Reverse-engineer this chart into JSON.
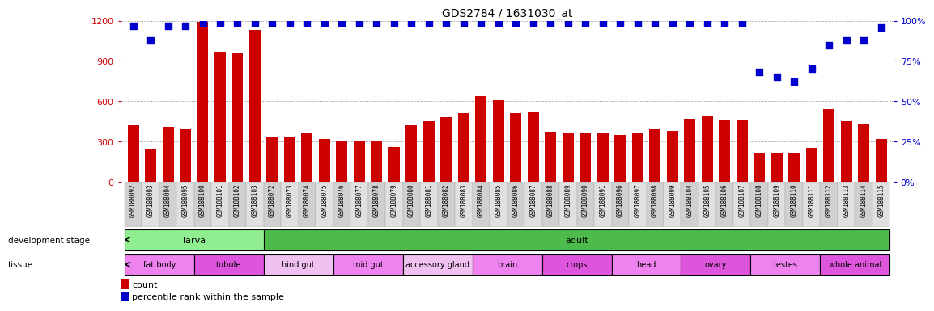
{
  "title": "GDS2784 / 1631030_at",
  "samples": [
    "GSM188092",
    "GSM188093",
    "GSM188094",
    "GSM188095",
    "GSM188100",
    "GSM188101",
    "GSM188102",
    "GSM188103",
    "GSM188072",
    "GSM188073",
    "GSM188074",
    "GSM188075",
    "GSM188076",
    "GSM188077",
    "GSM188078",
    "GSM188079",
    "GSM188080",
    "GSM188081",
    "GSM188082",
    "GSM188083",
    "GSM188084",
    "GSM188085",
    "GSM188086",
    "GSM188087",
    "GSM188088",
    "GSM188089",
    "GSM188090",
    "GSM188091",
    "GSM188096",
    "GSM188097",
    "GSM188098",
    "GSM188099",
    "GSM188104",
    "GSM188105",
    "GSM188106",
    "GSM188107",
    "GSM188108",
    "GSM188109",
    "GSM188110",
    "GSM188111",
    "GSM188112",
    "GSM188113",
    "GSM188114",
    "GSM188115"
  ],
  "counts": [
    420,
    250,
    410,
    390,
    1190,
    970,
    960,
    1130,
    340,
    330,
    360,
    320,
    310,
    310,
    310,
    260,
    420,
    450,
    480,
    510,
    640,
    610,
    510,
    520,
    370,
    360,
    360,
    360,
    350,
    360,
    390,
    380,
    470,
    490,
    460,
    460,
    220,
    215,
    215,
    255,
    540,
    450,
    430,
    320
  ],
  "percentiles": [
    97,
    88,
    97,
    97,
    99,
    99,
    99,
    99,
    99,
    99,
    99,
    99,
    99,
    99,
    99,
    99,
    99,
    99,
    99,
    99,
    99,
    99,
    99,
    99,
    99,
    99,
    99,
    99,
    99,
    99,
    99,
    99,
    99,
    99,
    99,
    99,
    68,
    65,
    62,
    70,
    85,
    88,
    88,
    96
  ],
  "ylim_left": [
    0,
    1200
  ],
  "ylim_right": [
    0,
    100
  ],
  "yticks_left": [
    0,
    300,
    600,
    900,
    1200
  ],
  "yticks_right": [
    0,
    25,
    50,
    75,
    100
  ],
  "bar_color": "#cc0000",
  "dot_color": "#0000cc",
  "background_color": "#ffffff",
  "development_stages": [
    {
      "label": "larva",
      "start": 0,
      "end": 8,
      "color": "#90ee90"
    },
    {
      "label": "adult",
      "start": 8,
      "end": 44,
      "color": "#4cbb4c"
    }
  ],
  "tissues": [
    {
      "label": "fat body",
      "start": 0,
      "end": 4,
      "color": "#ee82ee"
    },
    {
      "label": "tubule",
      "start": 4,
      "end": 8,
      "color": "#dd55dd"
    },
    {
      "label": "hind gut",
      "start": 8,
      "end": 12,
      "color": "#f0c0f0"
    },
    {
      "label": "mid gut",
      "start": 12,
      "end": 16,
      "color": "#ee82ee"
    },
    {
      "label": "accessory gland",
      "start": 16,
      "end": 20,
      "color": "#f0c0f0"
    },
    {
      "label": "brain",
      "start": 20,
      "end": 24,
      "color": "#ee82ee"
    },
    {
      "label": "crops",
      "start": 24,
      "end": 28,
      "color": "#dd55dd"
    },
    {
      "label": "head",
      "start": 28,
      "end": 32,
      "color": "#ee82ee"
    },
    {
      "label": "ovary",
      "start": 32,
      "end": 36,
      "color": "#dd55dd"
    },
    {
      "label": "testes",
      "start": 36,
      "end": 40,
      "color": "#ee82ee"
    },
    {
      "label": "whole animal",
      "start": 40,
      "end": 44,
      "color": "#dd55dd"
    }
  ],
  "bar_width": 0.65,
  "dot_size": 40,
  "grid_color": "#555555",
  "tick_color_left": "#cc0000",
  "tick_color_right": "#0000cc",
  "col_colors": [
    "#d0d0d0",
    "#e0e0e0"
  ]
}
